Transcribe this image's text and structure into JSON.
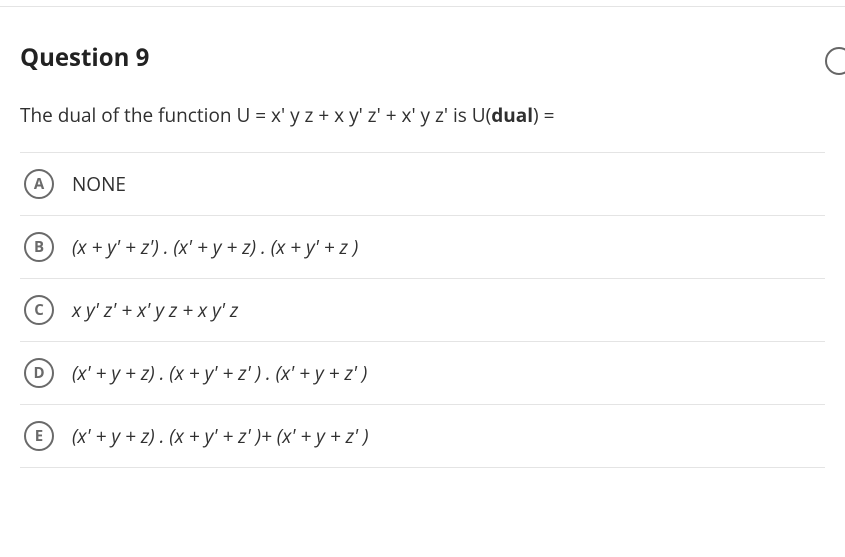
{
  "question": {
    "title": "Question 9",
    "prompt_html": "The dual of the function U = x' y z + x y' z' + x' y z'  is U(<b>dual</b>) ="
  },
  "options": [
    {
      "letter": "A",
      "text": "NONE",
      "italic": false
    },
    {
      "letter": "B",
      "text": "(x + y' + z') .  (x' + y + z) .  (x + y' + z )",
      "italic": true
    },
    {
      "letter": "C",
      "text": "x y' z' +  x' y z +  x y' z",
      "italic": true
    },
    {
      "letter": "D",
      "text": "(x' + y + z) .  (x + y' + z' ) .  (x' + y + z' )",
      "italic": true
    },
    {
      "letter": "E",
      "text": "(x' + y + z) .  (x + y' + z' )+  (x' + y + z' )",
      "italic": true
    }
  ],
  "style": {
    "border_color": "#e4e4e4",
    "circle_border": "#6a6a6a",
    "text_color": "#303030"
  }
}
